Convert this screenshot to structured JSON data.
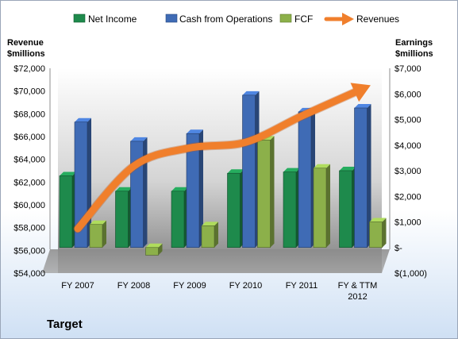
{
  "company_name": "Target",
  "chart_data": {
    "type": "bar",
    "categories": [
      "FY 2007",
      "FY 2008",
      "FY 2009",
      "FY 2010",
      "FY 2011",
      "FY & TTM|2012"
    ],
    "left_axis": {
      "title_line1": "Revenue",
      "title_line2": "$millions",
      "ylim": [
        54000,
        72000
      ],
      "ticks": [
        54000,
        56000,
        58000,
        60000,
        62000,
        64000,
        66000,
        68000,
        70000,
        72000
      ],
      "tick_labels": [
        "$54,000",
        "$56,000",
        "$58,000",
        "$60,000",
        "$62,000",
        "$64,000",
        "$66,000",
        "$68,000",
        "$70,000",
        "$72,000"
      ]
    },
    "right_axis": {
      "title_line1": "Earnings",
      "title_line2": "$millions",
      "ylim": [
        -1000,
        7000
      ],
      "ticks": [
        -1000,
        0,
        1000,
        2000,
        3000,
        4000,
        5000,
        6000,
        7000
      ],
      "tick_labels": [
        "$(1,000)",
        "$-",
        "$1,000",
        "$2,000",
        "$3,000",
        "$4,000",
        "$5,000",
        "$6,000",
        "$7,000"
      ]
    },
    "series": [
      {
        "name": "Net Income",
        "axis": "right",
        "kind": "bar",
        "color": "#1e8a4c",
        "values": [
          2800,
          2200,
          2200,
          2900,
          2950,
          3000
        ]
      },
      {
        "name": "Cash from Operations",
        "axis": "right",
        "kind": "bar",
        "color": "#3f6bb5",
        "values": [
          4900,
          4150,
          4450,
          5950,
          5300,
          5450
        ]
      },
      {
        "name": "FCF",
        "axis": "right",
        "kind": "bar",
        "color": "#8cb04a",
        "values": [
          900,
          -300,
          850,
          4200,
          3100,
          1000
        ]
      },
      {
        "name": "Revenues",
        "axis": "left",
        "kind": "line",
        "color": "#f07f2c",
        "values": [
          57900,
          63400,
          65000,
          65500,
          67800,
          70000
        ]
      }
    ],
    "grid": false,
    "legend_position": "top"
  }
}
